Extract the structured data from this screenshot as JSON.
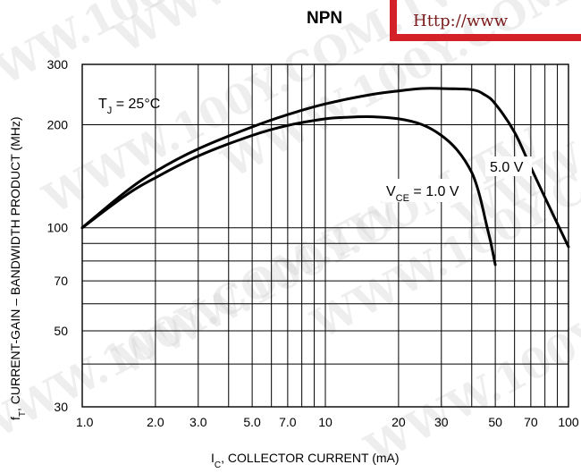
{
  "header": {
    "title": "NPN",
    "url_banner": "Http://www",
    "watermark": "WWW.100Y.COM.TW"
  },
  "colors": {
    "banner_border": "#d42027",
    "grid": "#000000",
    "curve": "#000000"
  },
  "chart_data": {
    "type": "line",
    "xscale": "log",
    "yscale": "log",
    "xlim": [
      1.0,
      100
    ],
    "ylim": [
      30,
      300
    ],
    "grid": true,
    "xlabel_main": "I",
    "xlabel_sub": "C",
    "xlabel_rest": ", COLLECTOR CURRENT (mA)",
    "ylabel_main": "f",
    "ylabel_sub": "T",
    "ylabel_rest": ", CURRENT-GAIN – BANDWIDTH PRODUCT (MHz)",
    "x_ticks": [
      {
        "value": 1.0,
        "label": "1.0"
      },
      {
        "value": 2.0,
        "label": "2.0"
      },
      {
        "value": 3.0,
        "label": "3.0"
      },
      {
        "value": 5.0,
        "label": "5.0"
      },
      {
        "value": 7.0,
        "label": "7.0"
      },
      {
        "value": 10,
        "label": "10"
      },
      {
        "value": 20,
        "label": "20"
      },
      {
        "value": 30,
        "label": "30"
      },
      {
        "value": 50,
        "label": "50"
      },
      {
        "value": 70,
        "label": "70"
      },
      {
        "value": 100,
        "label": "100"
      }
    ],
    "y_ticks": [
      {
        "value": 30,
        "label": "30"
      },
      {
        "value": 50,
        "label": "50"
      },
      {
        "value": 70,
        "label": "70"
      },
      {
        "value": 100,
        "label": "100"
      },
      {
        "value": 200,
        "label": "200"
      },
      {
        "value": 300,
        "label": "300"
      }
    ],
    "annotations": {
      "tj_main": "T",
      "tj_sub": "J",
      "tj_rest": " = 25°C",
      "vce_main": "V",
      "vce_sub": "CE",
      "vce_rest": " = 1.0 V",
      "v5_label": "5.0 V"
    },
    "series": [
      {
        "name": "5.0 V",
        "x": [
          1.0,
          1.5,
          2.0,
          3.0,
          5.0,
          7.0,
          10,
          15,
          20,
          25,
          30,
          40,
          45,
          50,
          60,
          70,
          85,
          100
        ],
        "y": [
          100,
          127,
          146,
          170,
          197,
          214,
          230,
          244,
          251,
          255,
          255,
          253,
          245,
          230,
          190,
          150,
          112,
          88
        ]
      },
      {
        "name": "1.0 V",
        "x": [
          1.0,
          1.5,
          2.0,
          3.0,
          5.0,
          7.0,
          10,
          12,
          15,
          20,
          25,
          30,
          35,
          40,
          43,
          46,
          48,
          50
        ],
        "y": [
          100,
          124,
          140,
          162,
          186,
          199,
          208,
          210,
          211,
          208,
          200,
          186,
          168,
          145,
          125,
          102,
          90,
          78
        ]
      }
    ]
  }
}
